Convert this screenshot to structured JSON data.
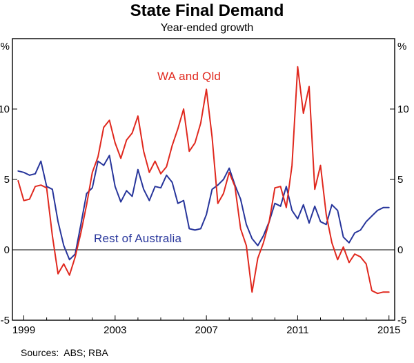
{
  "title": "State Final Demand",
  "subtitle": "Year-ended growth",
  "footer": {
    "sources": "Sources:  ABS; RBA"
  },
  "axis": {
    "unit_left": "%",
    "unit_right": "%",
    "y_tick_values": [
      -5,
      0,
      5,
      10
    ],
    "y_tick_labels": [
      "-5",
      "0",
      "5",
      "10"
    ],
    "x_tick_values": [
      1999,
      2003,
      2007,
      2011,
      2015
    ],
    "x_tick_labels": [
      "1999",
      "2003",
      "2007",
      "2011",
      "2015"
    ]
  },
  "chart_data": {
    "type": "line",
    "title": "State Final Demand",
    "subtitle": "Year-ended growth",
    "ylabel_unit": "%",
    "x_start": 1998.75,
    "x_step": 0.25,
    "x_frequency": "quarterly",
    "xlim": [
      1998.5,
      2015.25
    ],
    "ylim": [
      -5,
      15
    ],
    "yticks": [
      -5,
      0,
      5,
      10,
      15
    ],
    "xticks": [
      1999,
      2003,
      2007,
      2011,
      2015
    ],
    "grid": false,
    "zero_line": true,
    "legend_position": "inline-annotations",
    "sources": "ABS; RBA",
    "series": [
      {
        "name": "WA and Qld",
        "color": "#e0281e",
        "values": [
          4.9,
          3.5,
          3.6,
          4.5,
          4.6,
          4.4,
          1.0,
          -1.7,
          -1.0,
          -1.8,
          -0.5,
          1.2,
          3.2,
          5.5,
          6.6,
          8.7,
          9.2,
          7.6,
          6.5,
          7.8,
          8.3,
          9.5,
          7.0,
          5.5,
          6.3,
          5.4,
          5.9,
          7.4,
          8.6,
          10.0,
          7.0,
          7.6,
          9.0,
          11.4,
          8.0,
          3.3,
          4.0,
          5.5,
          4.5,
          1.5,
          0.3,
          -3.0,
          -0.6,
          0.5,
          2.0,
          4.4,
          4.5,
          3.0,
          6.0,
          13.0,
          9.7,
          11.6,
          4.3,
          6.0,
          2.5,
          0.5,
          -0.7,
          0.2,
          -0.9,
          -0.3,
          -0.5,
          -1.0,
          -2.9,
          -3.1,
          -3.0,
          -3.0
        ]
      },
      {
        "name": "Rest of Australia",
        "color": "#27359b",
        "values": [
          5.6,
          5.5,
          5.3,
          5.4,
          6.3,
          4.5,
          4.3,
          2.0,
          0.3,
          -0.7,
          -0.3,
          1.8,
          4.0,
          4.4,
          6.3,
          6.0,
          6.7,
          4.5,
          3.4,
          4.2,
          3.8,
          5.7,
          4.3,
          3.5,
          4.5,
          4.4,
          5.3,
          4.8,
          3.3,
          3.5,
          1.5,
          1.4,
          1.5,
          2.5,
          4.3,
          4.6,
          5.0,
          5.8,
          4.6,
          3.6,
          1.8,
          0.8,
          0.3,
          1.0,
          2.0,
          3.3,
          3.1,
          4.5,
          2.8,
          2.2,
          3.2,
          1.9,
          3.1,
          2.0,
          1.8,
          3.2,
          2.8,
          0.9,
          0.5,
          1.2,
          1.4,
          2.0,
          2.4,
          2.8,
          3.0,
          3.0
        ]
      }
    ]
  }
}
